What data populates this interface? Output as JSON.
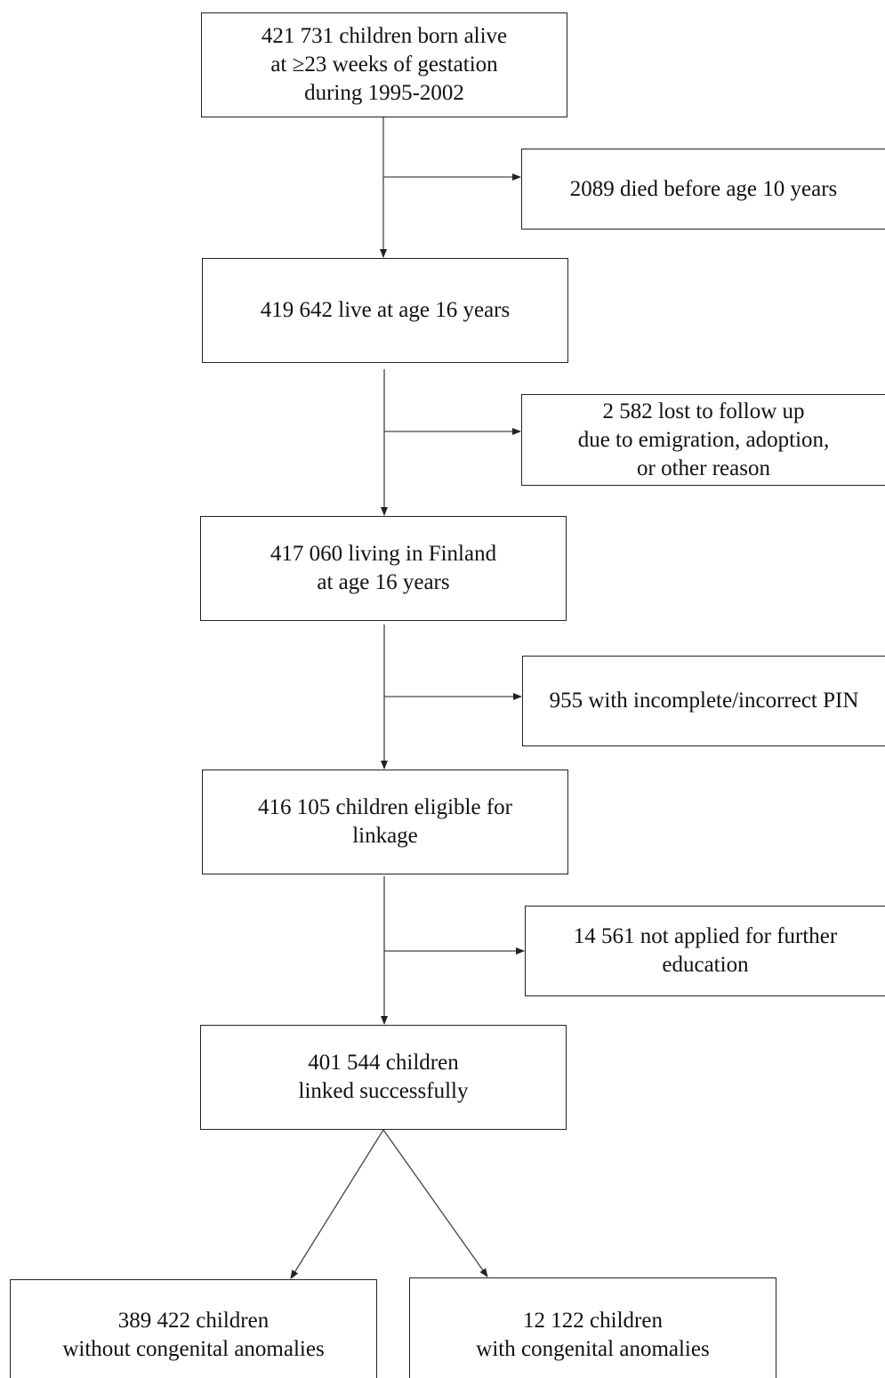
{
  "flowchart": {
    "born": [
      "421 731 children born alive",
      "at ≥23 weeks of gestation",
      "during 1995-2002"
    ],
    "died": [
      "2089 died before age 10 years"
    ],
    "alive16": [
      "419 642 live at age 16 years"
    ],
    "lost": [
      "2 582 lost to follow up",
      "due to emigration, adoption,",
      "or other reason"
    ],
    "finland": [
      "417 060 living in Finland",
      "at age 16 years"
    ],
    "pin": [
      "955 with incomplete/incorrect PIN"
    ],
    "eligible": [
      "416 105 children eligible for",
      "linkage"
    ],
    "notapplied": [
      "14 561 not applied for further",
      "education"
    ],
    "linked": [
      "401 544 children",
      "linked successfully"
    ],
    "without": [
      "389 422 children",
      "without congenital anomalies"
    ],
    "with": [
      "12 122 children",
      "with congenital anomalies"
    ]
  }
}
